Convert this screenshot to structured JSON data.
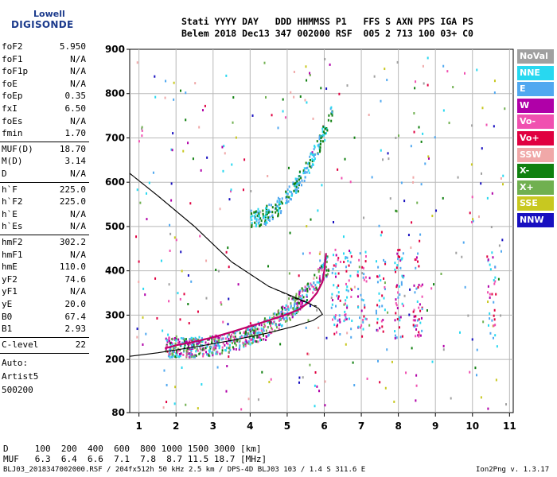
{
  "logo": {
    "line1": "Lowell",
    "line2": "DIGISONDE"
  },
  "header": {
    "line1": "Stati YYYY DAY   DDD HHMMSS P1   FFS S AXN PPS IGA PS",
    "line2": "Belem 2018 Dec13 347 002000 RSF  005 2 713 100 03+ C0"
  },
  "params": [
    {
      "k": "foF2",
      "v": "5.950"
    },
    {
      "k": "foF1",
      "v": "N/A"
    },
    {
      "k": "foF1p",
      "v": "N/A"
    },
    {
      "k": "foE",
      "v": "N/A"
    },
    {
      "k": "foEp",
      "v": "0.35"
    },
    {
      "k": "fxI",
      "v": "6.50"
    },
    {
      "k": "foEs",
      "v": "N/A"
    },
    {
      "k": "fmin",
      "v": "1.70"
    },
    {
      "k": "MUF(D)",
      "v": "18.70"
    },
    {
      "k": "M(D)",
      "v": "3.14"
    },
    {
      "k": "D",
      "v": "N/A"
    },
    {
      "k": "h`F",
      "v": "225.0"
    },
    {
      "k": "h`F2",
      "v": "225.0"
    },
    {
      "k": "h`E",
      "v": "N/A"
    },
    {
      "k": "h`Es",
      "v": "N/A"
    },
    {
      "k": "hmF2",
      "v": "302.2"
    },
    {
      "k": "hmF1",
      "v": "N/A"
    },
    {
      "k": "hmE",
      "v": "110.0"
    },
    {
      "k": "yF2",
      "v": "74.6"
    },
    {
      "k": "yF1",
      "v": "N/A"
    },
    {
      "k": "yE",
      "v": "20.0"
    },
    {
      "k": "B0",
      "v": "67.4"
    },
    {
      "k": "B1",
      "v": "2.93"
    },
    {
      "k": "C-level",
      "v": "22"
    }
  ],
  "auto": [
    "Auto:",
    "Artist5",
    "500200"
  ],
  "legend": [
    {
      "label": "NoVal",
      "color": "#a0a0a0"
    },
    {
      "label": "NNE",
      "color": "#28d8f0"
    },
    {
      "label": "E",
      "color": "#50a8f0"
    },
    {
      "label": "W",
      "color": "#b000a8"
    },
    {
      "label": "Vo-",
      "color": "#f050b0"
    },
    {
      "label": "Vo+",
      "color": "#e00040"
    },
    {
      "label": "SSW",
      "color": "#f0a8a8"
    },
    {
      "label": "X-",
      "color": "#108010"
    },
    {
      "label": "X+",
      "color": "#70b050"
    },
    {
      "label": "SSE",
      "color": "#c8c820"
    },
    {
      "label": "NNW",
      "color": "#1810c0"
    }
  ],
  "distance": {
    "row1": "D     100  200  400  600  800 1000 1500 3000 [km]",
    "row2": "MUF   6.3  6.4  6.6  7.1  7.8  8.7 11.5 18.7 [MHz]"
  },
  "footer": {
    "left": "BLJ03_2018347002000.RSF / 204fx512h 50 kHz 2.5 km / DPS-4D BLJ03 103 / 1.4 S 311.6 E",
    "right": "Ion2Png v. 1.3.17"
  },
  "chart_data": {
    "type": "scatter",
    "xlim": [
      0.75,
      11.1
    ],
    "ylim": [
      80,
      900
    ],
    "x_ticks": [
      1,
      2,
      3,
      4,
      5,
      6,
      7,
      8,
      9,
      10,
      11
    ],
    "y_ticks": [
      80,
      200,
      300,
      400,
      500,
      600,
      700,
      800,
      900
    ],
    "grid": true,
    "trace_virtual": [
      [
        1.7,
        225
      ],
      [
        2.0,
        232
      ],
      [
        2.5,
        240
      ],
      [
        3.0,
        250
      ],
      [
        3.5,
        262
      ],
      [
        4.0,
        275
      ],
      [
        4.5,
        288
      ],
      [
        5.0,
        302
      ],
      [
        5.3,
        312
      ],
      [
        5.6,
        330
      ],
      [
        5.8,
        350
      ],
      [
        5.95,
        375
      ],
      [
        6.0,
        400
      ],
      [
        6.05,
        440
      ]
    ],
    "profile_real": [
      [
        0.75,
        207
      ],
      [
        1.5,
        215
      ],
      [
        2.5,
        228
      ],
      [
        3.5,
        243
      ],
      [
        4.5,
        260
      ],
      [
        5.2,
        275
      ],
      [
        5.7,
        288
      ],
      [
        5.95,
        302
      ],
      [
        5.85,
        315
      ],
      [
        5.5,
        330
      ],
      [
        4.5,
        365
      ],
      [
        3.5,
        420
      ],
      [
        2.5,
        500
      ],
      [
        1.5,
        570
      ],
      [
        0.75,
        620
      ]
    ]
  }
}
